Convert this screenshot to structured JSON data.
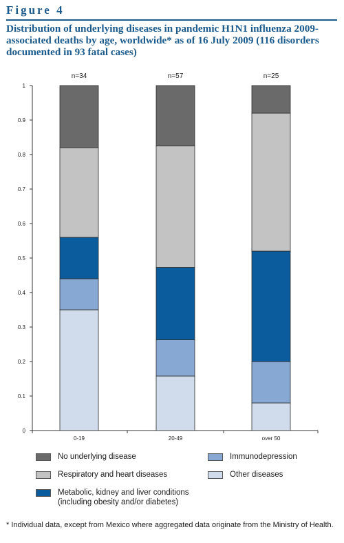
{
  "figure": {
    "label": "Figure 4",
    "title": "Distribution of underlying diseases in pandemic H1N1 influenza 2009-associated deaths by age, worldwide* as of 16 July 2009 (116 disorders documented in 93 fatal cases)"
  },
  "chart_data": {
    "type": "bar",
    "stacked": true,
    "categories": [
      "0-19",
      "20-49",
      "over 50"
    ],
    "bar_labels": [
      "n=34",
      "n=57",
      "n=25"
    ],
    "ylim": [
      0,
      1
    ],
    "yticks": [
      "0",
      "0.1",
      "0.2",
      "0.3",
      "0.4",
      "0.5",
      "0.6",
      "0.7",
      "0.8",
      "0.9",
      "1"
    ],
    "series": [
      {
        "name": "Other diseases",
        "color": "#d0dbeb",
        "values": [
          0.35,
          0.158,
          0.08
        ]
      },
      {
        "name": "Immunodepression",
        "color": "#86a8d2",
        "values": [
          0.09,
          0.105,
          0.12
        ]
      },
      {
        "name": "Metabolic, kidney and liver conditions (including obesity and/or diabetes)",
        "color": "#0b5c9d",
        "values": [
          0.12,
          0.21,
          0.32
        ]
      },
      {
        "name": "Respiratory and heart diseases",
        "color": "#c3c3c3",
        "values": [
          0.26,
          0.352,
          0.4
        ]
      },
      {
        "name": "No underlying disease",
        "color": "#6a6a6a",
        "values": [
          0.18,
          0.175,
          0.08
        ]
      }
    ]
  },
  "legend": {
    "no_underlying": "No underlying disease",
    "immunodepression": "Immunodepression",
    "respiratory": "Respiratory and heart diseases",
    "other": "Other diseases",
    "metabolic_line1": "Metabolic, kidney and liver conditions",
    "metabolic_line2": "(including obesity and/or diabetes)"
  },
  "footnote": "* Individual data, except from Mexico where aggregated data originate from the Ministry of Health."
}
